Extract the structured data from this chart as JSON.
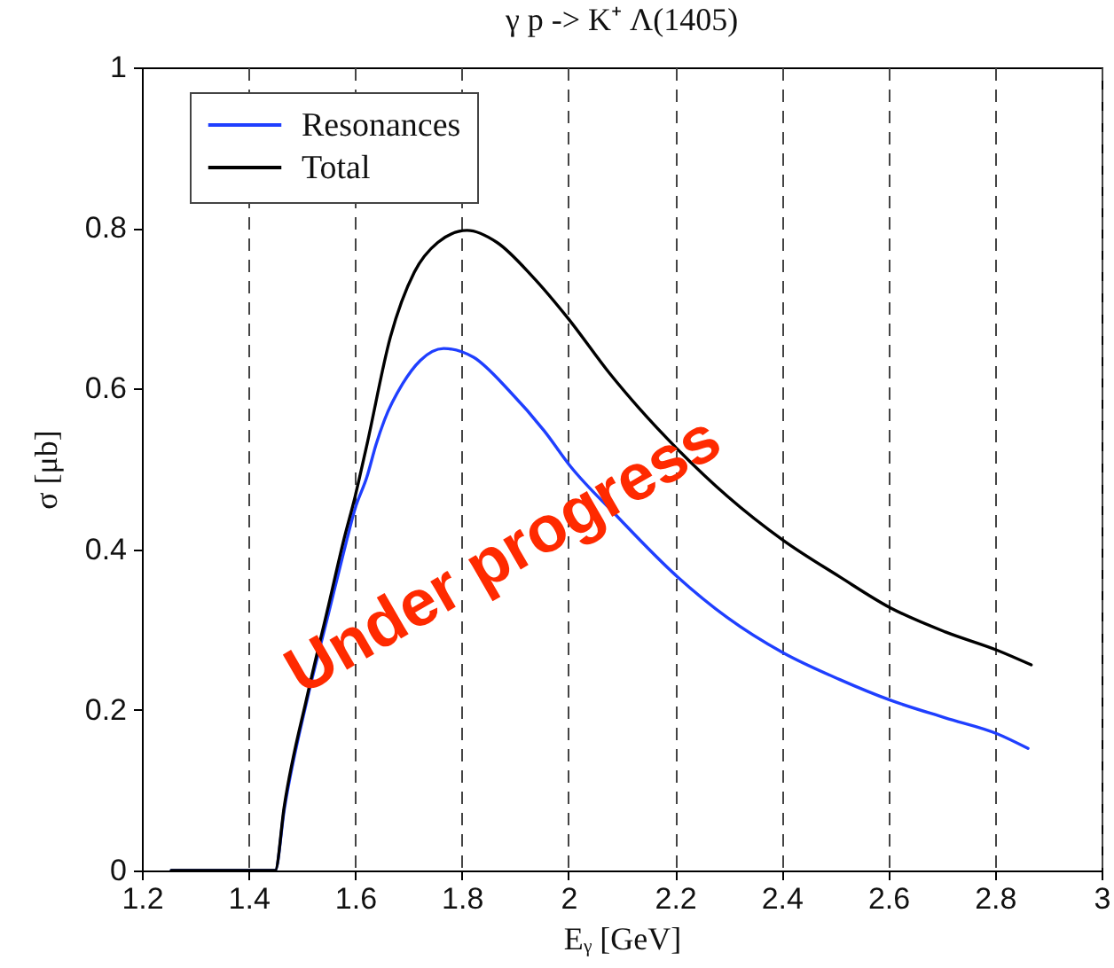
{
  "chart_data": {
    "type": "line",
    "title": "γ p -> K⁺ Λ(1405)",
    "xlabel": "Eᵧ [GeV]",
    "ylabel": "σ [μb]",
    "annotations": [
      "Under progress"
    ],
    "series": [
      {
        "name": "Resonances",
        "color": "#1f3fff",
        "x": [
          1.255,
          1.45,
          1.467,
          1.511,
          1.55,
          1.578,
          1.6,
          1.622,
          1.639,
          1.655,
          1.689,
          1.722,
          1.766,
          1.822,
          1.888,
          1.955,
          2.004,
          2.087,
          2.204,
          2.298,
          2.403,
          2.508,
          2.604,
          2.707,
          2.805,
          2.862
        ],
        "values": [
          0,
          0,
          0.076,
          0.216,
          0.32,
          0.395,
          0.451,
          0.49,
          0.53,
          0.561,
          0.606,
          0.635,
          0.65,
          0.639,
          0.598,
          0.547,
          0.503,
          0.444,
          0.366,
          0.315,
          0.271,
          0.238,
          0.212,
          0.19,
          0.17,
          0.152
        ]
      },
      {
        "name": "Total",
        "color": "#000000",
        "x": [
          1.255,
          1.45,
          1.467,
          1.511,
          1.55,
          1.578,
          1.6,
          1.622,
          1.666,
          1.711,
          1.755,
          1.81,
          1.866,
          1.932,
          2.0,
          2.076,
          2.132,
          2.204,
          2.298,
          2.403,
          2.508,
          2.604,
          2.707,
          2.805,
          2.868
        ],
        "values": [
          0,
          0,
          0.08,
          0.22,
          0.33,
          0.41,
          0.466,
          0.53,
          0.664,
          0.745,
          0.782,
          0.797,
          0.782,
          0.74,
          0.687,
          0.62,
          0.576,
          0.525,
          0.466,
          0.411,
          0.366,
          0.327,
          0.297,
          0.274,
          0.256
        ]
      }
    ],
    "xlim": [
      1.2,
      3
    ],
    "ylim": [
      0,
      1
    ],
    "xticks": [
      1.2,
      1.4,
      1.6,
      1.8,
      2,
      2.2,
      2.4,
      2.6,
      2.8,
      3
    ],
    "yticks": [
      0,
      0.2,
      0.4,
      0.6,
      0.8,
      1
    ],
    "grid": "x",
    "legend": "top left",
    "line_style": "solid"
  }
}
